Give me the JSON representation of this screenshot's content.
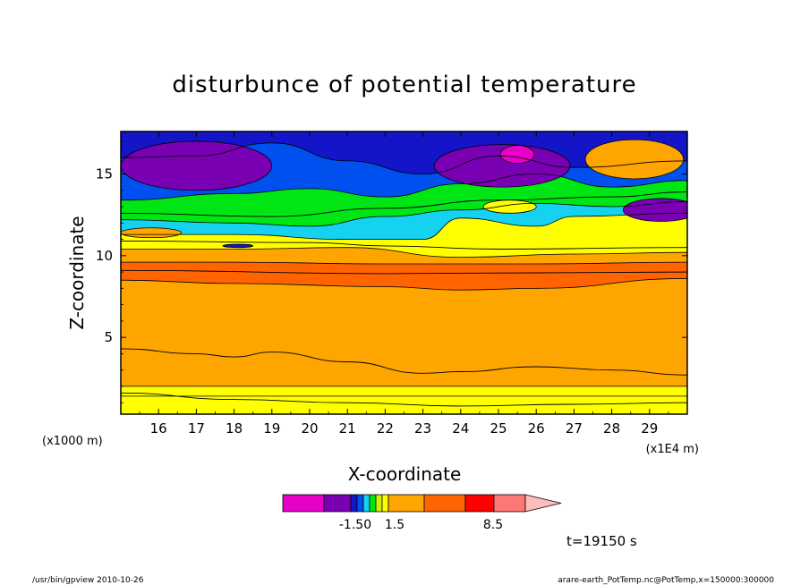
{
  "title": "disturbunce of potential temperature",
  "chart_data": {
    "type": "heatmap",
    "title": "disturbunce of potential temperature",
    "xlabel": "X-coordinate",
    "ylabel": "Z-coordinate",
    "x_unit_left": "(x1000 m)",
    "x_unit_right": "(x1E4 m)",
    "xlim": [
      15.0,
      30.0
    ],
    "ylim": [
      0.3,
      17.6
    ],
    "x_ticks": [
      "16",
      "17",
      "18",
      "19",
      "20",
      "21",
      "22",
      "23",
      "24",
      "25",
      "26",
      "27",
      "28",
      "29"
    ],
    "y_ticks": [
      "5",
      "10",
      "15"
    ],
    "grid": false,
    "colorbar": {
      "labels": [
        "-1.50",
        "1.5",
        "8.5"
      ],
      "colors": [
        "#e600c8",
        "#7a00b4",
        "#1414c8",
        "#0050f0",
        "#14d2f0",
        "#00e614",
        "#d2f000",
        "#ffff00",
        "#ffa500",
        "#ff6400",
        "#ff0000",
        "#ff7878",
        "#ffbcbc"
      ]
    },
    "layers": [
      {
        "color": "#ffff00",
        "top": [
          [
            15,
            1.4
          ],
          [
            30,
            1.4
          ]
        ]
      },
      {
        "color": "#ffa500",
        "top": [
          [
            15,
            2.0
          ],
          [
            30,
            2.0
          ]
        ]
      },
      {
        "color": "#ff6400",
        "top": [
          [
            15,
            8.5
          ],
          [
            18,
            8.3
          ],
          [
            22,
            8.1
          ],
          [
            24,
            7.9
          ],
          [
            26,
            8.0
          ],
          [
            30,
            8.6
          ]
        ]
      },
      {
        "color": "#ffa500",
        "top": [
          [
            15,
            9.6
          ],
          [
            18,
            9.6
          ],
          [
            22,
            9.5
          ],
          [
            26,
            9.5
          ],
          [
            30,
            9.6
          ]
        ]
      },
      {
        "color": "#ffff00",
        "top": [
          [
            15,
            10.4
          ],
          [
            18,
            10.4
          ],
          [
            21,
            10.5
          ],
          [
            24,
            9.9
          ],
          [
            27,
            10.1
          ],
          [
            30,
            10.2
          ]
        ]
      },
      {
        "color": "#14d2f0",
        "top": [
          [
            15,
            11.3
          ],
          [
            18,
            11.3
          ],
          [
            21,
            11.0
          ],
          [
            23,
            11.0
          ],
          [
            24,
            12.3
          ],
          [
            26,
            11.8
          ],
          [
            27,
            12.4
          ],
          [
            30,
            12.6
          ]
        ]
      },
      {
        "color": "#00e614",
        "top": [
          [
            15,
            12.2
          ],
          [
            18,
            12.0
          ],
          [
            20,
            11.8
          ],
          [
            22,
            12.4
          ],
          [
            24,
            12.8
          ],
          [
            26,
            13.2
          ],
          [
            28,
            13.0
          ],
          [
            30,
            13.3
          ]
        ]
      },
      {
        "color": "#0050f0",
        "top": [
          [
            15,
            13.4
          ],
          [
            18,
            13.8
          ],
          [
            20,
            14.1
          ],
          [
            22,
            13.6
          ],
          [
            24,
            14.4
          ],
          [
            26,
            15.0
          ],
          [
            28,
            14.2
          ],
          [
            30,
            14.6
          ]
        ]
      },
      {
        "color": "#1414c8",
        "top": [
          [
            15,
            16.0
          ],
          [
            17,
            16.1
          ],
          [
            19,
            16.9
          ],
          [
            21,
            15.8
          ],
          [
            23,
            15.0
          ],
          [
            25,
            16.1
          ],
          [
            27,
            15.4
          ],
          [
            30,
            15.8
          ]
        ]
      },
      {
        "color": "#7a00b4",
        "top": [
          [
            15,
            17.6
          ],
          [
            30,
            17.6
          ]
        ]
      }
    ],
    "blobs": [
      {
        "color": "#7a00b4",
        "cx": 17.0,
        "cy": 15.5,
        "rx": 2.0,
        "ry": 1.5
      },
      {
        "color": "#7a00b4",
        "cx": 25.1,
        "cy": 15.5,
        "rx": 1.8,
        "ry": 1.3
      },
      {
        "color": "#e600c8",
        "cx": 25.5,
        "cy": 16.2,
        "rx": 0.45,
        "ry": 0.55
      },
      {
        "color": "#7a00b4",
        "cx": 29.3,
        "cy": 12.8,
        "rx": 1.0,
        "ry": 0.7
      },
      {
        "color": "#ffa500",
        "cx": 28.6,
        "cy": 15.9,
        "rx": 1.3,
        "ry": 1.2
      },
      {
        "color": "#ffff00",
        "cx": 25.3,
        "cy": 13.0,
        "rx": 0.7,
        "ry": 0.4
      },
      {
        "color": "#ffa500",
        "cx": 15.8,
        "cy": 11.4,
        "rx": 0.8,
        "ry": 0.3
      },
      {
        "color": "#1414c8",
        "cx": 18.1,
        "cy": 10.6,
        "rx": 0.4,
        "ry": 0.1
      }
    ],
    "contours": [
      [
        [
          15,
          4.3
        ],
        [
          17,
          4.0
        ],
        [
          18,
          3.8
        ],
        [
          19,
          4.1
        ],
        [
          21,
          3.5
        ],
        [
          23,
          2.8
        ],
        [
          24,
          2.9
        ],
        [
          26,
          3.2
        ],
        [
          28,
          3.0
        ],
        [
          30,
          2.7
        ]
      ],
      [
        [
          15,
          1.6
        ],
        [
          18,
          1.2
        ],
        [
          21,
          1.0
        ],
        [
          24,
          0.8
        ],
        [
          27,
          0.9
        ],
        [
          30,
          1.0
        ]
      ],
      [
        [
          15,
          9.1
        ],
        [
          22,
          8.9
        ],
        [
          30,
          9.0
        ]
      ],
      [
        [
          15,
          10.9
        ],
        [
          20,
          10.8
        ],
        [
          22,
          10.6
        ],
        [
          25,
          10.4
        ],
        [
          30,
          10.5
        ]
      ],
      [
        [
          15,
          12.6
        ],
        [
          19,
          12.4
        ],
        [
          22,
          12.9
        ],
        [
          25,
          13.4
        ],
        [
          28,
          13.6
        ],
        [
          30,
          13.9
        ]
      ]
    ]
  },
  "time_label": "t=19150 s",
  "footer_left": "/usr/bin/gpview   2010-10-26",
  "footer_right": "arare-earth_PotTemp.nc@PotTemp,x=150000:300000"
}
